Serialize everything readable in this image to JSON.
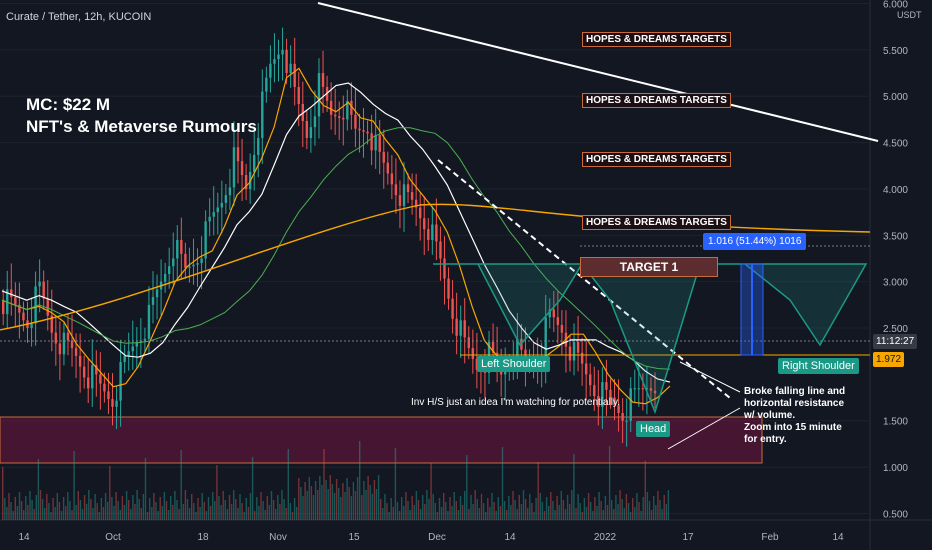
{
  "symbol": "Curate / Tether, 12h, KUCOIN",
  "currency": "USDT",
  "mc_line1": "MC: $22 M",
  "mc_line2": "NFT's & Metaverse Rumours",
  "hopes_label": "HOPES & DREAMS TARGETS",
  "target1": "TARGET 1",
  "measure": "1.016 (51.44%) 1016",
  "left_shoulder": "Left Shoulder",
  "right_shoulder": "Right Shoulder",
  "head": "Head",
  "inv_note": "Inv H/S just an idea I'm watching for potentially.",
  "broke_note": "Broke falling line and\nhorizontal resistance\nw/ volume.\nZoom into 15 minute\nfor entry.",
  "countdown": "11:12:27",
  "last_price": "1.972",
  "colors": {
    "bg": "#131722",
    "up": "#26a69a",
    "down": "#ef5350",
    "accent": "#2962ff",
    "ma_orange": "#f7a600",
    "ma_white": "#ffffff",
    "ma_green": "#4caf50"
  },
  "chart_data": {
    "type": "candlestick",
    "title": "Curate / Tether, 12h, KUCOIN",
    "y_unit": "USDT",
    "ylim": [
      0.3,
      6.0
    ],
    "y_ticks": [
      "6.000",
      "5.500",
      "5.000",
      "4.500",
      "4.000",
      "3.500",
      "3.000",
      "2.500",
      "1.500",
      "1.000",
      "0.500"
    ],
    "x_ticks": [
      "14",
      "Oct",
      "18",
      "Nov",
      "15",
      "Dec",
      "14",
      "2022",
      "17",
      "Feb",
      "14"
    ],
    "close_path": [
      2.8,
      2.7,
      2.6,
      2.9,
      2.5,
      2.3,
      2.2,
      2.0,
      1.85,
      1.75,
      2.1,
      2.4,
      2.6,
      3.0,
      3.4,
      3.1,
      3.3,
      3.6,
      3.9,
      4.3,
      4.0,
      4.7,
      5.3,
      5.6,
      5.0,
      4.6,
      5.1,
      4.8,
      4.9,
      4.6,
      4.7,
      4.3,
      4.1,
      3.9,
      3.8,
      3.6,
      3.2,
      2.7,
      2.3,
      2.1,
      2.2,
      2.0,
      2.3,
      2.1,
      2.2,
      2.6,
      2.5,
      2.2,
      2.0,
      1.8,
      1.7,
      1.6,
      1.75,
      1.9,
      1.97
    ],
    "hopes_levels": [
      5.55,
      4.9,
      4.2,
      3.5
    ],
    "target1_level": 2.95,
    "neckline": 1.95,
    "measured_move": {
      "change": 1.016,
      "percent": 51.44,
      "ticks": 1016
    },
    "current_price": 1.972
  }
}
